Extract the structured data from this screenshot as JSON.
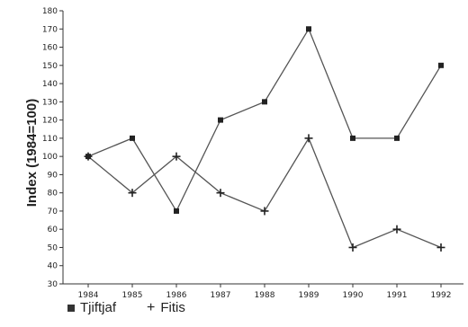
{
  "chart_data": {
    "type": "line",
    "title": "",
    "xlabel": "",
    "ylabel": "Index (1984=100)",
    "x": [
      "1984",
      "1985",
      "1986",
      "1987",
      "1988",
      "1989",
      "1990",
      "1991",
      "1992"
    ],
    "ylim": [
      30,
      180
    ],
    "yticks": [
      30,
      40,
      50,
      60,
      70,
      80,
      90,
      100,
      110,
      120,
      130,
      140,
      150,
      160,
      170,
      180
    ],
    "grid": false,
    "legend_position": "bottom-left",
    "series": [
      {
        "name": "Tjiftjaf",
        "marker": "square",
        "values": [
          100,
          110,
          70,
          120,
          130,
          170,
          110,
          110,
          150
        ]
      },
      {
        "name": "Fitis",
        "marker": "plus",
        "values": [
          100,
          80,
          100,
          80,
          70,
          110,
          50,
          60,
          50
        ]
      }
    ]
  },
  "legend": {
    "items": [
      {
        "symbol": "■",
        "label": "Tjiftjaf"
      },
      {
        "symbol": "+",
        "label": "Fitis"
      }
    ]
  },
  "colors": {
    "line": "#555555",
    "marker": "#222222",
    "axis": "#333333"
  }
}
